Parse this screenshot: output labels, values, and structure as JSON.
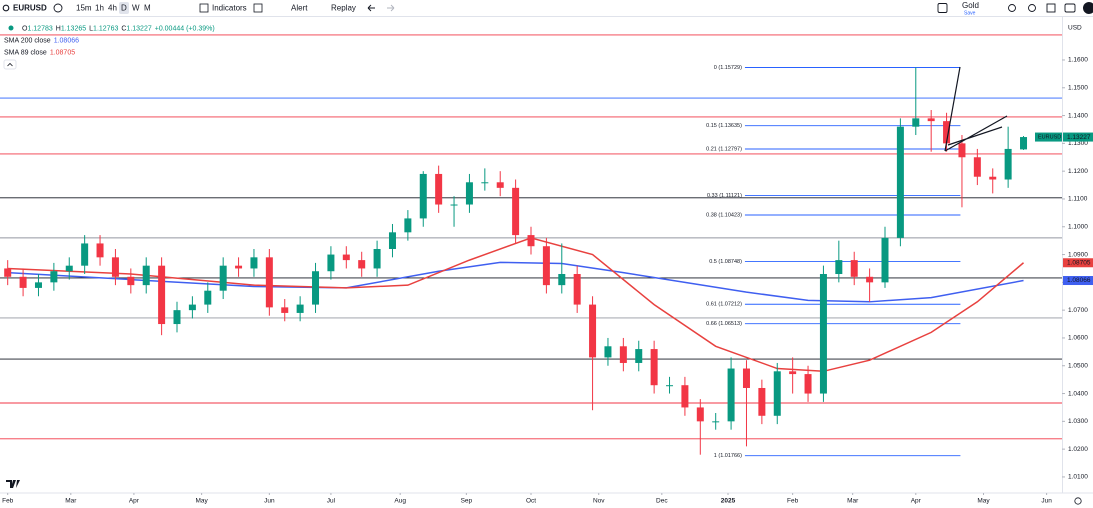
{
  "toolbar": {
    "symbol": "EURUSD",
    "timeframes": [
      "15m",
      "1h",
      "4h",
      "D",
      "W",
      "M"
    ],
    "active_timeframe": 3,
    "indicators": "Indicators",
    "alert": "Alert",
    "replay": "Replay",
    "layout_name": "Gold",
    "save": "Save"
  },
  "chart_data": {
    "type": "candlestick",
    "symbol": "EURUSD",
    "currency": "USD",
    "ohlc_keys": [
      "O",
      "H",
      "L",
      "C"
    ],
    "change_label": "+0.00444 (+0.39%)",
    "up_color": "#089981",
    "down_color": "#f23645",
    "xlim": [
      -0.5,
      68.5
    ],
    "ylim": [
      1.0053,
      1.1751
    ],
    "xticks": [
      {
        "value": 0,
        "label": "Feb"
      },
      {
        "value": 4.1,
        "label": "Mar"
      },
      {
        "value": 8.2,
        "label": "Apr"
      },
      {
        "value": 12.6,
        "label": "May"
      },
      {
        "value": 17,
        "label": "Jun"
      },
      {
        "value": 21,
        "label": "Jul"
      },
      {
        "value": 25.5,
        "label": "Aug"
      },
      {
        "value": 29.8,
        "label": "Sep"
      },
      {
        "value": 34,
        "label": "Oct"
      },
      {
        "value": 38.4,
        "label": "Nov"
      },
      {
        "value": 42.5,
        "label": "Dec"
      },
      {
        "value": 46.8,
        "label": "2025"
      },
      {
        "value": 51,
        "label": "Feb"
      },
      {
        "value": 54.9,
        "label": "Mar"
      },
      {
        "value": 59,
        "label": "Apr"
      },
      {
        "value": 63.4,
        "label": "May"
      },
      {
        "value": 67.5,
        "label": "Jun"
      }
    ],
    "yticks": [
      {
        "value": 1.16,
        "label": "1.1600"
      },
      {
        "value": 1.15,
        "label": "1.1500"
      },
      {
        "value": 1.14,
        "label": "1.1400"
      },
      {
        "value": 1.13,
        "label": "1.1300"
      },
      {
        "value": 1.12,
        "label": "1.1200"
      },
      {
        "value": 1.11,
        "label": "1.1100"
      },
      {
        "value": 1.1,
        "label": "1.1000"
      },
      {
        "value": 1.09,
        "label": "1.0900"
      },
      {
        "value": 1.08,
        "label": "1.0800"
      },
      {
        "value": 1.07,
        "label": "1.0700"
      },
      {
        "value": 1.06,
        "label": "1.0600"
      },
      {
        "value": 1.05,
        "label": "1.0500"
      },
      {
        "value": 1.04,
        "label": "1.0400"
      },
      {
        "value": 1.03,
        "label": "1.0300"
      },
      {
        "value": 1.02,
        "label": "1.0200"
      },
      {
        "value": 1.01,
        "label": "1.0100"
      }
    ],
    "hlines": [
      {
        "value": 1.169,
        "color": "#f23645"
      },
      {
        "value": 1.1463,
        "color": "#2962ff"
      },
      {
        "value": 1.1395,
        "color": "#f23645"
      },
      {
        "value": 1.1262,
        "color": "#f23645"
      },
      {
        "value": 1.1104,
        "color": "#131722"
      },
      {
        "value": 1.096,
        "color": "#9598a1"
      },
      {
        "value": 1.0816,
        "color": "#131722"
      },
      {
        "value": 1.0672,
        "color": "#9598a1"
      },
      {
        "value": 1.0524,
        "color": "#131722"
      },
      {
        "value": 1.0366,
        "color": "#f23645"
      },
      {
        "value": 1.0237,
        "color": "#f23645"
      }
    ],
    "fib": [
      {
        "value": 1.15729,
        "label": "0 (1.15729)"
      },
      {
        "value": 1.13635,
        "label": "0.15 (1.13635)"
      },
      {
        "value": 1.12797,
        "label": "0.21 (1.12797)"
      },
      {
        "value": 1.11121,
        "label": "0.33 (1.11121)"
      },
      {
        "value": 1.10423,
        "label": "0.38 (1.10423)"
      },
      {
        "value": 1.08748,
        "label": "0.5 (1.08748)"
      },
      {
        "value": 1.07212,
        "label": "0.61 (1.07212)"
      },
      {
        "value": 1.06513,
        "label": "0.66 (1.06513)"
      },
      {
        "value": 1.01766,
        "label": "1 (1.01766)"
      }
    ],
    "fib_color": "#2962ff",
    "sma": [
      {
        "name": "SMA 200 close",
        "color": "#3f5ff0",
        "last": 1.08066,
        "x": [
          0,
          8,
          16,
          22,
          28,
          32,
          36,
          40,
          44,
          48,
          52,
          56,
          60,
          66
        ],
        "values": [
          1.0835,
          1.081,
          1.0785,
          1.078,
          1.084,
          1.0872,
          1.0868,
          1.0835,
          1.08,
          1.0765,
          1.0735,
          1.073,
          1.0745,
          1.08066
        ]
      },
      {
        "name": "SMA 89 close",
        "color": "#e8413f",
        "last": 1.08705,
        "x": [
          0,
          8,
          16,
          22,
          26,
          30,
          34,
          38,
          42,
          46,
          50,
          53,
          56,
          60,
          63,
          66
        ],
        "values": [
          1.085,
          1.083,
          1.079,
          1.078,
          1.079,
          1.088,
          1.096,
          1.09,
          1.072,
          1.057,
          1.049,
          1.048,
          1.052,
          1.062,
          1.073,
          1.08705
        ]
      }
    ],
    "candles": [
      [
        1.085,
        1.088,
        1.079,
        1.082
      ],
      [
        1.082,
        1.085,
        1.075,
        1.078
      ],
      [
        1.078,
        1.083,
        1.075,
        1.08
      ],
      [
        1.08,
        1.087,
        1.077,
        1.084
      ],
      [
        1.084,
        1.089,
        1.081,
        1.086
      ],
      [
        1.086,
        1.097,
        1.083,
        1.094
      ],
      [
        1.094,
        1.097,
        1.086,
        1.089
      ],
      [
        1.089,
        1.092,
        1.079,
        1.082
      ],
      [
        1.082,
        1.085,
        1.076,
        1.079
      ],
      [
        1.079,
        1.089,
        1.076,
        1.086
      ],
      [
        1.086,
        1.089,
        1.061,
        1.065
      ],
      [
        1.065,
        1.073,
        1.062,
        1.07
      ],
      [
        1.07,
        1.075,
        1.067,
        1.072
      ],
      [
        1.072,
        1.08,
        1.069,
        1.077
      ],
      [
        1.077,
        1.089,
        1.074,
        1.086
      ],
      [
        1.086,
        1.089,
        1.082,
        1.085
      ],
      [
        1.085,
        1.092,
        1.082,
        1.089
      ],
      [
        1.089,
        1.092,
        1.068,
        1.071
      ],
      [
        1.071,
        1.074,
        1.066,
        1.069
      ],
      [
        1.069,
        1.075,
        1.066,
        1.072
      ],
      [
        1.072,
        1.087,
        1.069,
        1.084
      ],
      [
        1.084,
        1.093,
        1.081,
        1.09
      ],
      [
        1.09,
        1.093,
        1.085,
        1.088
      ],
      [
        1.088,
        1.091,
        1.082,
        1.085
      ],
      [
        1.085,
        1.095,
        1.082,
        1.092
      ],
      [
        1.092,
        1.101,
        1.089,
        1.098
      ],
      [
        1.098,
        1.106,
        1.095,
        1.103
      ],
      [
        1.103,
        1.12,
        1.1,
        1.119
      ],
      [
        1.119,
        1.122,
        1.105,
        1.108
      ],
      [
        1.108,
        1.111,
        1.1,
        1.108
      ],
      [
        1.108,
        1.119,
        1.105,
        1.116
      ],
      [
        1.116,
        1.121,
        1.113,
        1.116
      ],
      [
        1.116,
        1.12,
        1.111,
        1.114
      ],
      [
        1.114,
        1.117,
        1.094,
        1.097
      ],
      [
        1.097,
        1.1,
        1.09,
        1.093
      ],
      [
        1.093,
        1.096,
        1.076,
        1.079
      ],
      [
        1.079,
        1.094,
        1.076,
        1.083
      ],
      [
        1.083,
        1.086,
        1.069,
        1.072
      ],
      [
        1.072,
        1.075,
        1.034,
        1.053
      ],
      [
        1.053,
        1.06,
        1.05,
        1.057
      ],
      [
        1.057,
        1.06,
        1.048,
        1.051
      ],
      [
        1.051,
        1.059,
        1.048,
        1.056
      ],
      [
        1.056,
        1.059,
        1.04,
        1.043
      ],
      [
        1.043,
        1.046,
        1.04,
        1.043
      ],
      [
        1.043,
        1.046,
        1.032,
        1.035
      ],
      [
        1.035,
        1.038,
        1.018,
        1.03
      ],
      [
        1.03,
        1.033,
        1.027,
        1.03
      ],
      [
        1.03,
        1.053,
        1.027,
        1.049
      ],
      [
        1.049,
        1.052,
        1.021,
        1.042
      ],
      [
        1.042,
        1.045,
        1.029,
        1.032
      ],
      [
        1.032,
        1.051,
        1.029,
        1.048
      ],
      [
        1.048,
        1.053,
        1.04,
        1.047
      ],
      [
        1.047,
        1.05,
        1.037,
        1.04
      ],
      [
        1.04,
        1.086,
        1.037,
        1.083
      ],
      [
        1.083,
        1.095,
        1.08,
        1.088
      ],
      [
        1.088,
        1.091,
        1.079,
        1.082
      ],
      [
        1.082,
        1.085,
        1.073,
        1.08
      ],
      [
        1.08,
        1.1,
        1.078,
        1.096
      ],
      [
        1.096,
        1.139,
        1.093,
        1.136
      ],
      [
        1.136,
        1.1573,
        1.133,
        1.139
      ],
      [
        1.139,
        1.142,
        1.127,
        1.138
      ],
      [
        1.138,
        1.141,
        1.127,
        1.13
      ],
      [
        1.13,
        1.133,
        1.107,
        1.125
      ],
      [
        1.125,
        1.128,
        1.115,
        1.118
      ],
      [
        1.118,
        1.121,
        1.112,
        1.117
      ],
      [
        1.117,
        1.136,
        1.114,
        1.128
      ],
      [
        1.12783,
        1.13265,
        1.12763,
        1.13227
      ]
    ]
  }
}
